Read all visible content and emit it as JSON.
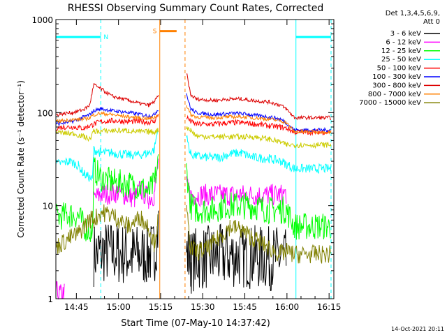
{
  "chart_data": {
    "type": "line",
    "title": "RHESSI Observing Summary Count Rates, Corrected",
    "xlabel": "Start Time (07-May-10 14:37:42)",
    "ylabel": "Corrected Count Rate (s⁻¹ detector⁻¹)",
    "y_scale": "log",
    "ylim": [
      1,
      1000
    ],
    "xlim_minutes": [
      0,
      99
    ],
    "x_tick_labels": [
      "14:45",
      "15:00",
      "15:15",
      "15:30",
      "15:45",
      "16:00",
      "16:15"
    ],
    "x_tick_minutes": [
      7.3,
      22.3,
      37.3,
      52.3,
      67.3,
      82.3,
      97.3
    ],
    "y_tick_labels": [
      "1",
      "10",
      "100",
      "1000"
    ],
    "y_tick_values": [
      1,
      10,
      100,
      1000
    ],
    "legend_title_lines": [
      "Det 1,3,4,5,6,9,",
      "Att 0"
    ],
    "footer_date": "14-Oct-2021 20:11",
    "grid": false,
    "legend_position": "right",
    "series": [
      {
        "name": "3 - 6 keV",
        "color": "#000000",
        "segments": [
          [
            [
              13.5,
              3
            ],
            [
              16,
              3.2
            ],
            [
              22,
              3.1
            ],
            [
              28,
              2.9
            ],
            [
              33,
              3
            ],
            [
              35,
              3.1
            ],
            [
              36.5,
              6
            ]
          ],
          [
            [
              46.5,
              3.2
            ],
            [
              48,
              2.5
            ],
            [
              50,
              2.7
            ],
            [
              56,
              2.8
            ],
            [
              62,
              2.9
            ],
            [
              70,
              2.8
            ],
            [
              76,
              2.7
            ],
            [
              80,
              2.8
            ],
            [
              82,
              2.5
            ]
          ]
        ],
        "noise": 0.35
      },
      {
        "name": "6 - 12 keV",
        "color": "#ff00ff",
        "segments": [
          [
            [
              0,
              1.2
            ],
            [
              1.5,
              1.1
            ],
            [
              3,
              1.15
            ]
          ],
          [
            [
              13.5,
              12
            ],
            [
              16,
              13
            ],
            [
              22,
              14
            ],
            [
              28,
              12
            ],
            [
              30,
              15
            ],
            [
              33,
              12
            ],
            [
              35,
              13
            ],
            [
              36.5,
              30
            ]
          ],
          [
            [
              46.5,
              16
            ],
            [
              48,
              13
            ],
            [
              52,
              13
            ],
            [
              60,
              13
            ],
            [
              66,
              13
            ],
            [
              72,
              13
            ],
            [
              80,
              13
            ],
            [
              82,
              13.5
            ]
          ]
        ],
        "noise": 0.12
      },
      {
        "name": "12 - 25 keV",
        "color": "#00ff00",
        "segments": [
          [
            [
              0,
              7.5
            ],
            [
              5,
              8
            ],
            [
              8,
              7.8
            ],
            [
              10,
              6
            ],
            [
              13,
              5
            ],
            [
              13.5,
              25
            ],
            [
              16,
              20
            ],
            [
              20,
              18
            ],
            [
              26,
              17
            ],
            [
              30,
              16
            ],
            [
              33,
              14
            ],
            [
              35,
              17
            ],
            [
              36.5,
              30
            ]
          ],
          [
            [
              46.5,
              25
            ],
            [
              48,
              10
            ],
            [
              50,
              9
            ],
            [
              56,
              9
            ],
            [
              60,
              10
            ],
            [
              66,
              10
            ],
            [
              70,
              10
            ],
            [
              76,
              9
            ],
            [
              82,
              9
            ],
            [
              85,
              6
            ],
            [
              92,
              6
            ],
            [
              98,
              6
            ]
          ]
        ],
        "noise": 0.15
      },
      {
        "name": "25 - 50 keV",
        "color": "#00ffff",
        "segments": [
          [
            [
              0,
              28
            ],
            [
              5,
              30
            ],
            [
              8,
              27
            ],
            [
              10,
              22
            ],
            [
              13,
              19
            ],
            [
              13.5,
              40
            ],
            [
              16,
              37
            ],
            [
              20,
              37
            ],
            [
              26,
              35
            ],
            [
              30,
              35
            ],
            [
              33,
              37
            ],
            [
              35,
              40
            ],
            [
              36.5,
              70
            ]
          ],
          [
            [
              46.5,
              55
            ],
            [
              48,
              36
            ],
            [
              50,
              34
            ],
            [
              54,
              33
            ],
            [
              58,
              33
            ],
            [
              62,
              36
            ],
            [
              66,
              37
            ],
            [
              70,
              33
            ],
            [
              76,
              32
            ],
            [
              80,
              30
            ],
            [
              82,
              28
            ],
            [
              85,
              25
            ],
            [
              92,
              25
            ],
            [
              98,
              25
            ]
          ]
        ],
        "noise": 0.05
      },
      {
        "name": "50 - 100 keV",
        "color": "#ff0000",
        "segments": [
          [
            [
              0,
              68
            ],
            [
              3,
              70
            ],
            [
              6,
              70
            ],
            [
              10,
              68
            ],
            [
              12,
              72
            ],
            [
              13.5,
              75
            ],
            [
              16,
              80
            ],
            [
              20,
              82
            ],
            [
              26,
              80
            ],
            [
              30,
              80
            ],
            [
              33,
              79
            ],
            [
              35,
              80
            ],
            [
              36.5,
              95
            ]
          ],
          [
            [
              46.5,
              90
            ],
            [
              48,
              80
            ],
            [
              50,
              75
            ],
            [
              56,
              75
            ],
            [
              62,
              78
            ],
            [
              66,
              78
            ],
            [
              70,
              76
            ],
            [
              76,
              72
            ],
            [
              80,
              70
            ],
            [
              82,
              68
            ],
            [
              85,
              62
            ],
            [
              92,
              62
            ],
            [
              98,
              62
            ]
          ]
        ],
        "noise": 0.03
      },
      {
        "name": "100 - 300 keV",
        "color": "#0000ff",
        "segments": [
          [
            [
              0,
              75
            ],
            [
              3,
              78
            ],
            [
              6,
              80
            ],
            [
              10,
              90
            ],
            [
              12,
              95
            ],
            [
              13.5,
              105
            ],
            [
              16,
              110
            ],
            [
              20,
              105
            ],
            [
              26,
              100
            ],
            [
              30,
              96
            ],
            [
              33,
              92
            ],
            [
              35,
              95
            ],
            [
              36.5,
              110
            ]
          ],
          [
            [
              46.5,
              160
            ],
            [
              48,
              110
            ],
            [
              50,
              100
            ],
            [
              56,
              95
            ],
            [
              62,
              98
            ],
            [
              66,
              98
            ],
            [
              70,
              94
            ],
            [
              76,
              90
            ],
            [
              80,
              85
            ],
            [
              82,
              78
            ],
            [
              85,
              65
            ],
            [
              92,
              65
            ],
            [
              98,
              65
            ]
          ]
        ],
        "noise": 0.02
      },
      {
        "name": "300 - 800 keV",
        "color": "#dd0000",
        "segments": [
          [
            [
              0,
              95
            ],
            [
              3,
              98
            ],
            [
              6,
              100
            ],
            [
              10,
              108
            ],
            [
              12,
              120
            ],
            [
              13.5,
              200
            ],
            [
              16,
              180
            ],
            [
              20,
              150
            ],
            [
              26,
              135
            ],
            [
              30,
              125
            ],
            [
              33,
              120
            ],
            [
              35,
              130
            ],
            [
              36.5,
              150
            ]
          ],
          [
            [
              46.5,
              270
            ],
            [
              48,
              155
            ],
            [
              50,
              140
            ],
            [
              56,
              135
            ],
            [
              62,
              140
            ],
            [
              66,
              140
            ],
            [
              70,
              135
            ],
            [
              76,
              130
            ],
            [
              80,
              120
            ],
            [
              82,
              110
            ],
            [
              85,
              88
            ],
            [
              92,
              88
            ],
            [
              98,
              88
            ]
          ]
        ],
        "noise": 0.02
      },
      {
        "name": "800 - 7000 keV",
        "color": "#ff8000",
        "segments": [
          [
            [
              0,
              80
            ],
            [
              3,
              82
            ],
            [
              6,
              84
            ],
            [
              10,
              85
            ],
            [
              12,
              88
            ],
            [
              13.5,
              95
            ],
            [
              16,
              98
            ],
            [
              20,
              95
            ],
            [
              26,
              90
            ],
            [
              30,
              88
            ],
            [
              33,
              86
            ],
            [
              35,
              88
            ],
            [
              36.5,
              95
            ]
          ],
          [
            [
              46.5,
              120
            ],
            [
              48,
              95
            ],
            [
              50,
              90
            ],
            [
              56,
              88
            ],
            [
              62,
              90
            ],
            [
              66,
              90
            ],
            [
              70,
              88
            ],
            [
              76,
              85
            ],
            [
              80,
              82
            ],
            [
              82,
              78
            ],
            [
              85,
              62
            ],
            [
              92,
              62
            ],
            [
              98,
              62
            ]
          ]
        ],
        "noise": 0.02
      },
      {
        "name": "7000 - 15000 keV",
        "color": "#808000",
        "segments": [
          [
            [
              0,
              3.6
            ],
            [
              5,
              4.5
            ],
            [
              8,
              5
            ],
            [
              10,
              6
            ],
            [
              13,
              7.5
            ],
            [
              13.5,
              7
            ],
            [
              16,
              8.5
            ],
            [
              20,
              8
            ],
            [
              26,
              6
            ],
            [
              30,
              7.5
            ],
            [
              33,
              6
            ],
            [
              35,
              4
            ],
            [
              36.5,
              7
            ]
          ],
          [
            [
              46.5,
              9
            ],
            [
              48,
              3.5
            ],
            [
              50,
              3.2
            ],
            [
              54,
              3.4
            ],
            [
              58,
              4.5
            ],
            [
              62,
              6
            ],
            [
              66,
              5.5
            ],
            [
              70,
              4.5
            ],
            [
              76,
              3.5
            ],
            [
              80,
              3
            ],
            [
              82,
              3.2
            ],
            [
              85,
              3
            ],
            [
              92,
              3
            ],
            [
              98,
              3
            ]
          ]
        ],
        "noise": 0.1
      },
      {
        "name": "",
        "color": "#cccc00",
        "segments": [
          [
            [
              0,
              62
            ],
            [
              3,
              60
            ],
            [
              6,
              60
            ],
            [
              10,
              55
            ],
            [
              12,
              52
            ],
            [
              13.5,
              63
            ],
            [
              16,
              63
            ],
            [
              20,
              64
            ],
            [
              26,
              64
            ],
            [
              30,
              62
            ],
            [
              33,
              62
            ],
            [
              35,
              62
            ],
            [
              36.5,
              65
            ]
          ],
          [
            [
              46.5,
              70
            ],
            [
              48,
              65
            ],
            [
              50,
              56
            ],
            [
              56,
              55
            ],
            [
              62,
              55
            ],
            [
              66,
              55
            ],
            [
              70,
              55
            ],
            [
              76,
              52
            ],
            [
              80,
              48
            ],
            [
              82,
              45
            ],
            [
              85,
              45
            ],
            [
              92,
              45
            ],
            [
              98,
              45
            ]
          ]
        ],
        "noise": 0.03
      }
    ],
    "annotations": [
      {
        "label": "N",
        "color": "#00ffff",
        "x_start": 0,
        "x_end": 16,
        "y": 650
      },
      {
        "label": "",
        "color": "#00ffff",
        "x_start": 85.5,
        "x_end": 98,
        "y": 650
      },
      {
        "label": "S",
        "color": "#ff8000",
        "x_start": 37,
        "x_end": 43,
        "y": 750
      }
    ],
    "region_lines": [
      {
        "x": 0,
        "color": "#00ffff",
        "dash": false
      },
      {
        "x": 16,
        "color": "#00ffff",
        "dash": true
      },
      {
        "x": 37,
        "color": "#ff8000",
        "dash": false
      },
      {
        "x": 46,
        "color": "#ff8000",
        "dash": true
      },
      {
        "x": 85.5,
        "color": "#00ffff",
        "dash": false
      },
      {
        "x": 98,
        "color": "#00ffff",
        "dash": true
      }
    ]
  }
}
